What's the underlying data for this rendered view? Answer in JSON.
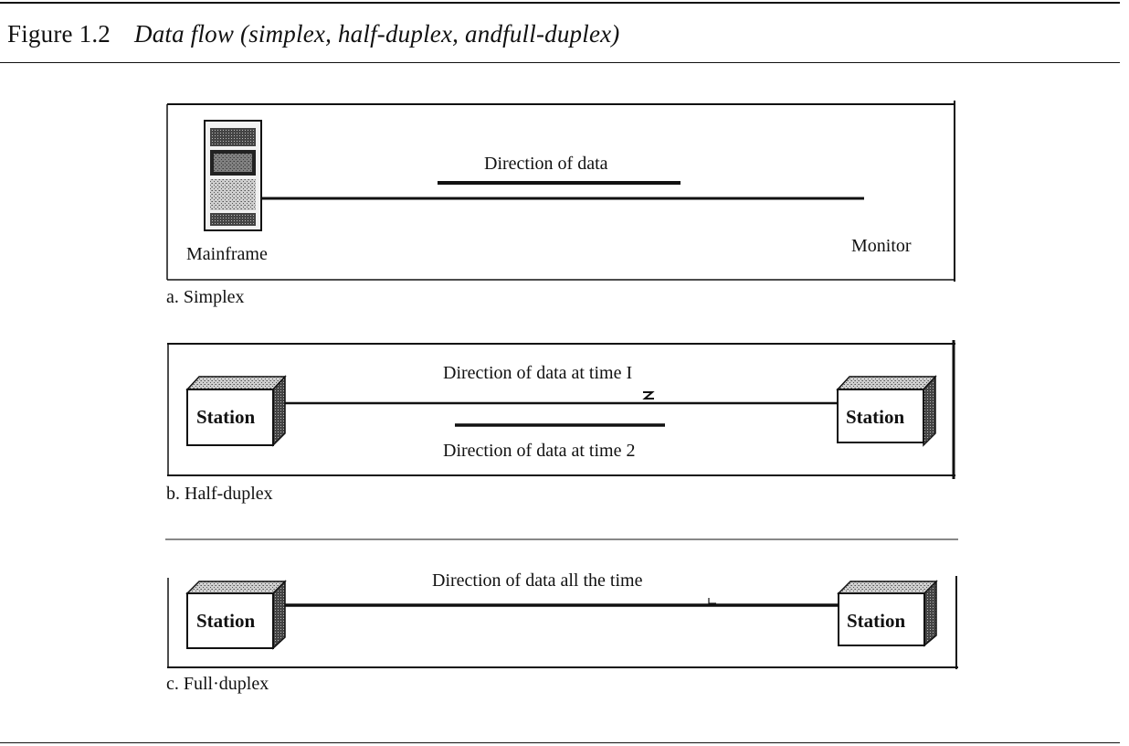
{
  "figure": {
    "number": "Figure 1.2",
    "caption": "Data flow (simplex, half-duplex, andfull-duplex)"
  },
  "simplex": {
    "direction_label": "Direction of data",
    "left_device": "Mainframe",
    "right_device": "Monitor",
    "caption": "a. Simplex"
  },
  "half_duplex": {
    "direction_time1": "Direction of data at time  I",
    "direction_time2": "Direction of data at time  2",
    "left_station": "Station",
    "right_station": "Station",
    "caption": "b. Half-duplex"
  },
  "full_duplex": {
    "direction_label": "Direction of data all the time",
    "left_station": "Station",
    "right_station": "Station",
    "caption": "c. Full·duplex"
  }
}
